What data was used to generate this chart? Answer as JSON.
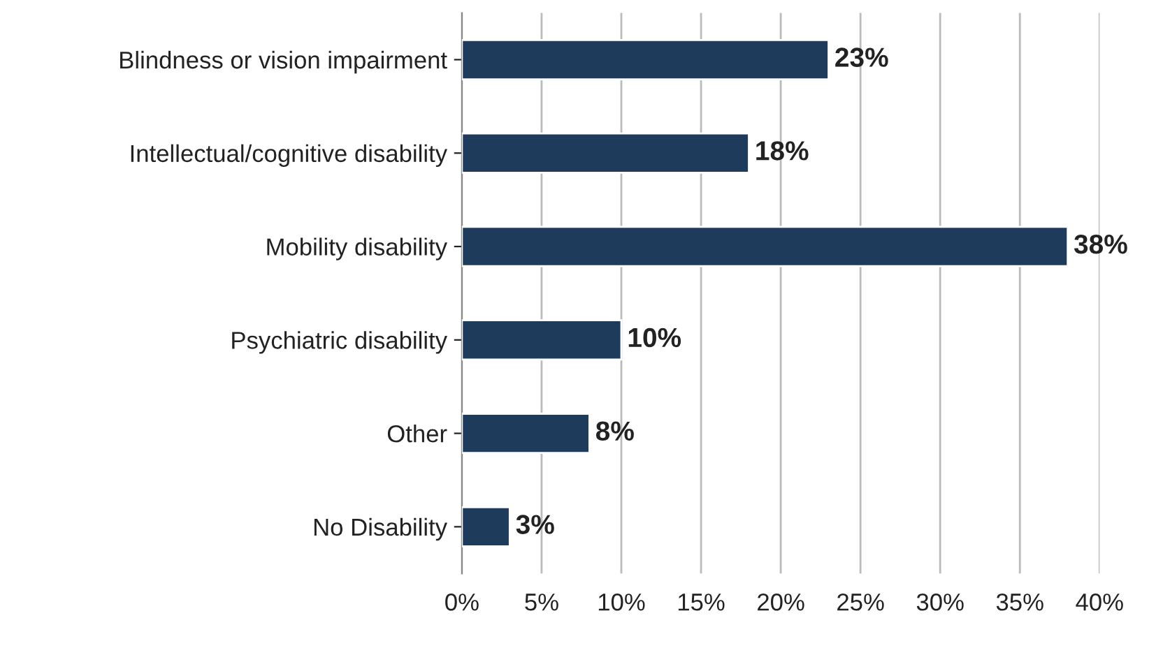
{
  "chart_data": {
    "type": "bar",
    "orientation": "horizontal",
    "categories": [
      "Blindness or vision impairment",
      "Intellectual/cognitive disability",
      "Mobility disability",
      "Psychiatric disability",
      "Other",
      "No Disability"
    ],
    "values": [
      23,
      18,
      38,
      10,
      8,
      3
    ],
    "value_labels": [
      "23%",
      "18%",
      "38%",
      "10%",
      "8%",
      "3%"
    ],
    "color": "#1f3b5c",
    "xlim": [
      0,
      40
    ],
    "xticks": [
      {
        "value": 0,
        "label": "0%"
      },
      {
        "value": 5,
        "label": "5%"
      },
      {
        "value": 10,
        "label": "10%"
      },
      {
        "value": 15,
        "label": "15%"
      },
      {
        "value": 20,
        "label": "20%"
      },
      {
        "value": 25,
        "label": "25%"
      },
      {
        "value": 30,
        "label": "30%"
      },
      {
        "value": 35,
        "label": "35%"
      },
      {
        "value": 40,
        "label": "40%"
      }
    ],
    "grid": "x",
    "legend": false
  }
}
